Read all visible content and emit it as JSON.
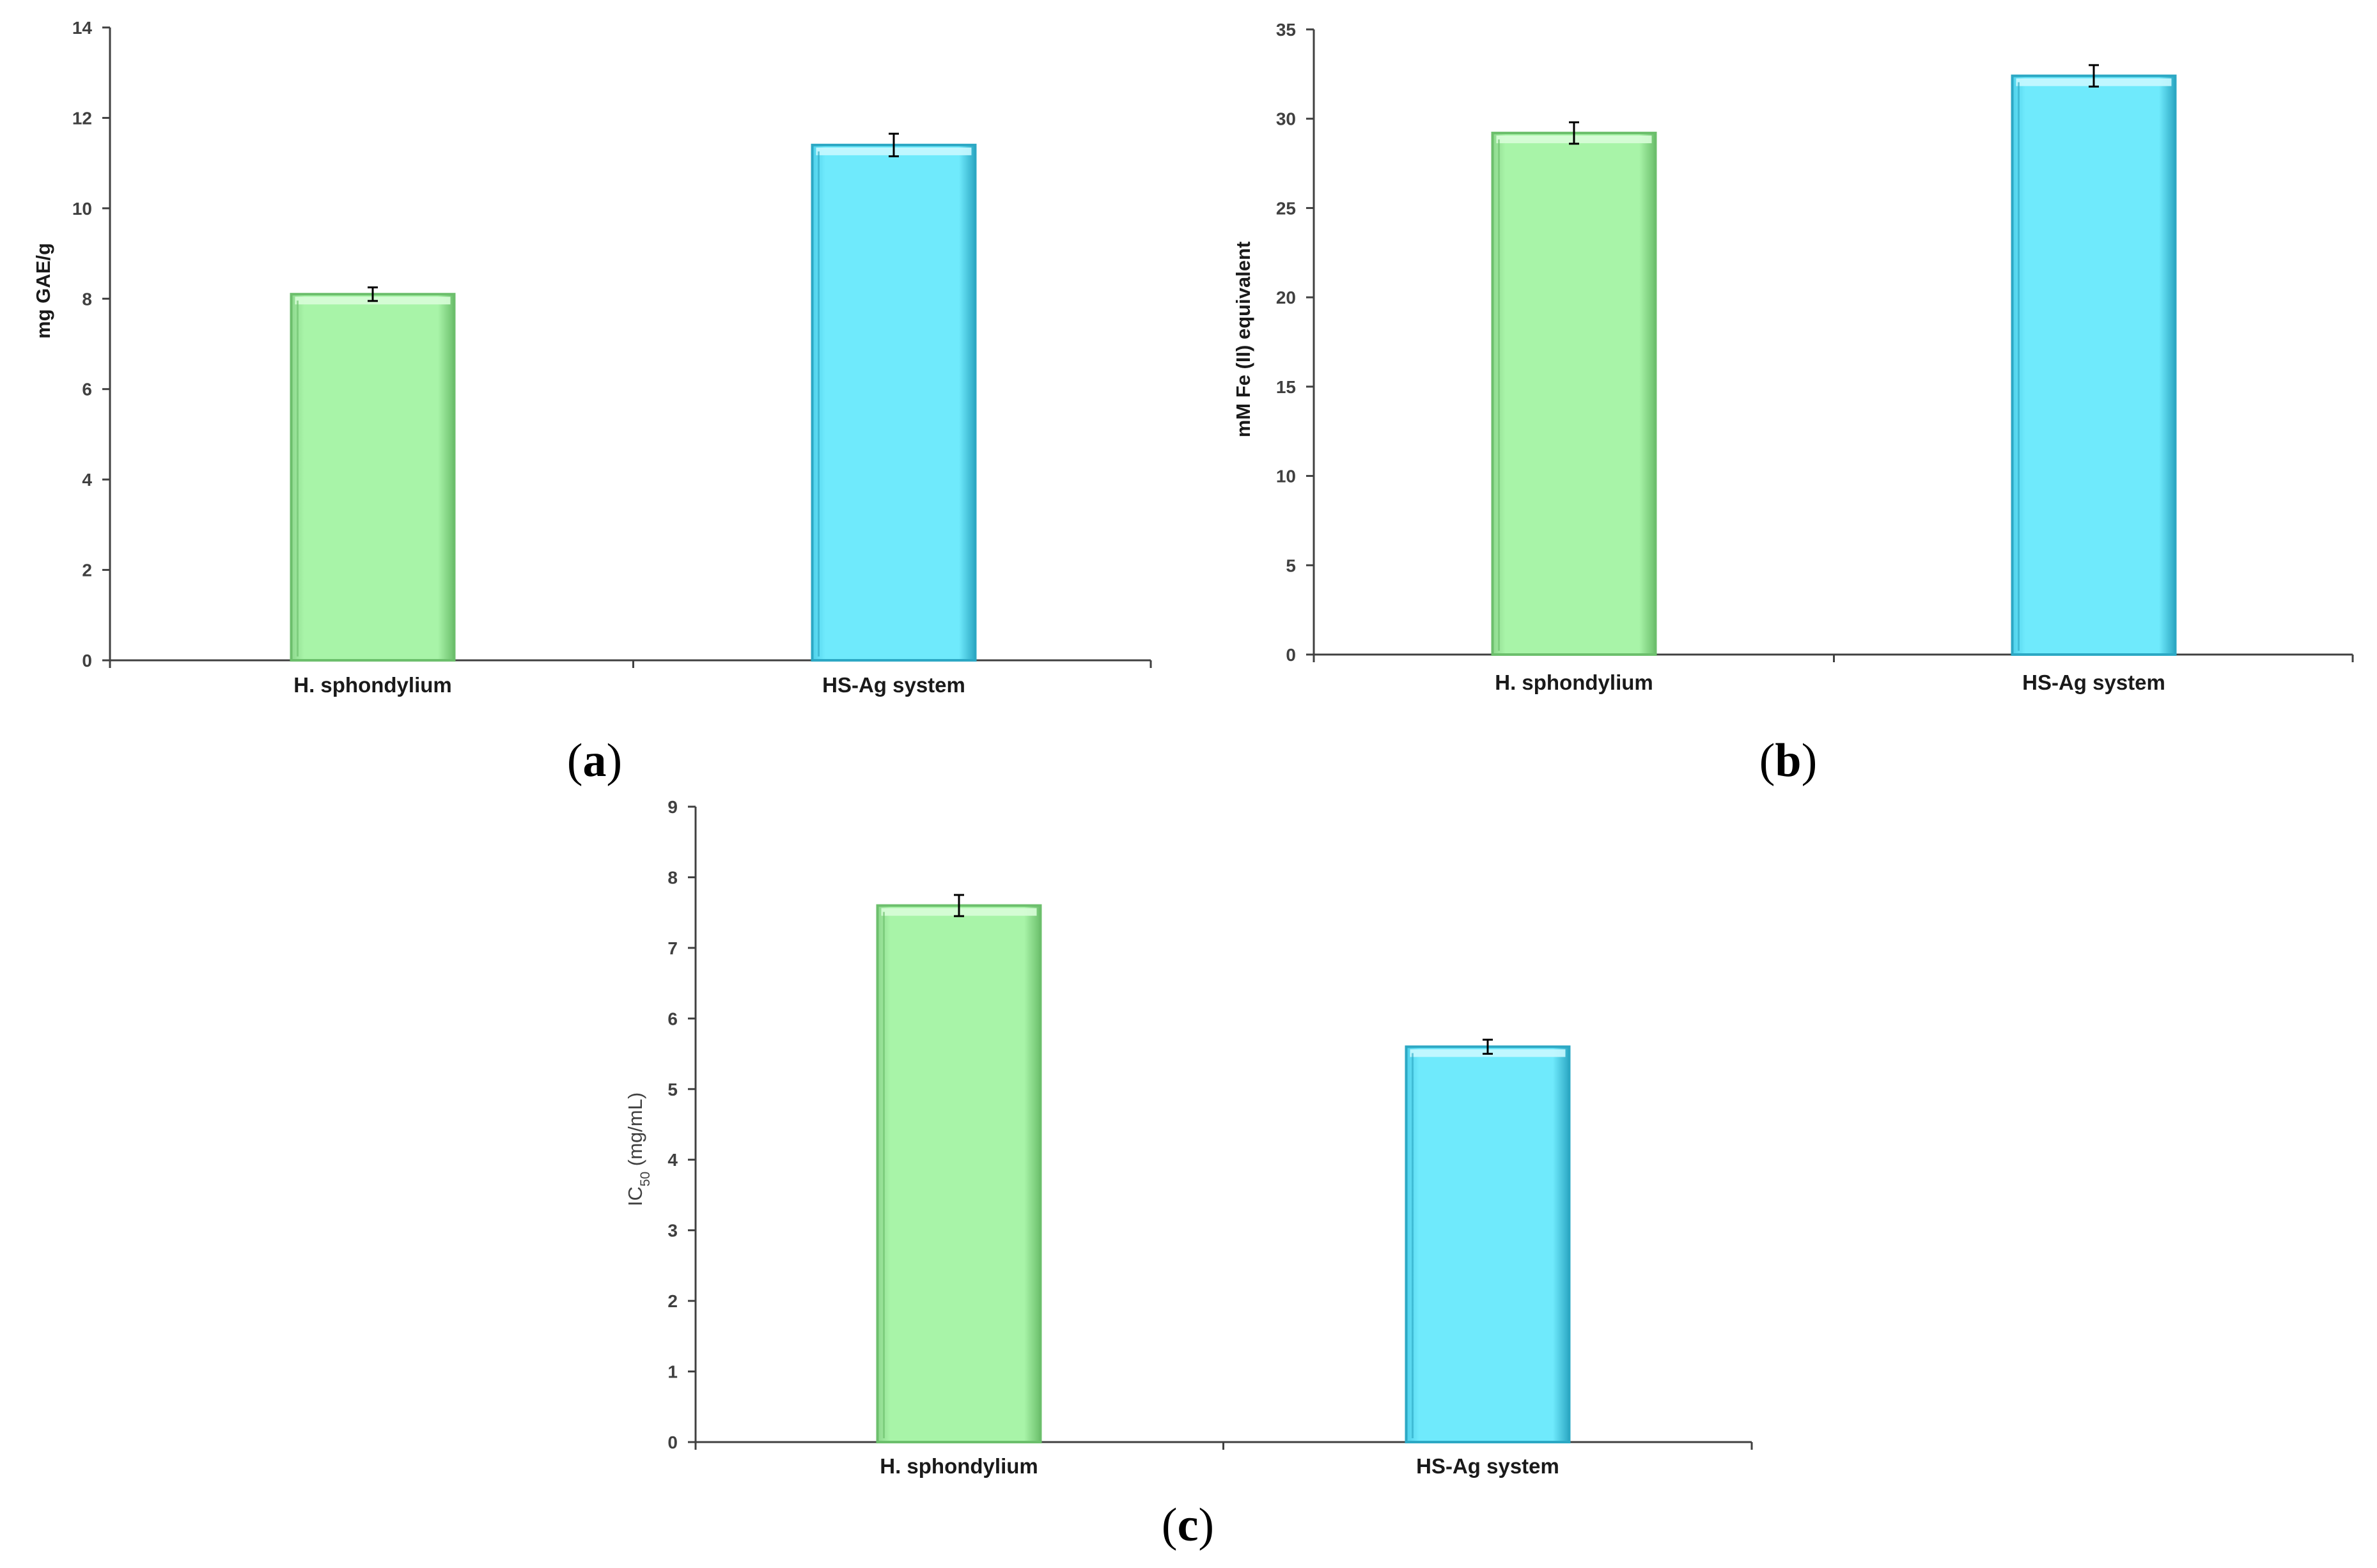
{
  "colors": {
    "green_fill": "#a8f4a8",
    "green_edge": "#6cbf6c",
    "blue_fill": "#6feafc",
    "blue_edge": "#2ca8c4",
    "axis": "#404040"
  },
  "chart_data": [
    {
      "type": "bar",
      "panel_label": {
        "open": "(",
        "letter": "a",
        "close": ")"
      },
      "categories": [
        "H. sphondylium",
        "HS-Ag system"
      ],
      "values": [
        8.1,
        11.4
      ],
      "errors": [
        0.15,
        0.25
      ],
      "ylabel": "mg GAE/g",
      "ylim": [
        0,
        14
      ],
      "yticks": [
        "0",
        "2",
        "4",
        "6",
        "8",
        "10",
        "12",
        "14"
      ]
    },
    {
      "type": "bar",
      "panel_label": {
        "open": "(",
        "letter": "b",
        "close": ")"
      },
      "categories": [
        "H. sphondylium",
        "HS-Ag system"
      ],
      "values": [
        29.2,
        32.4
      ],
      "errors": [
        0.6,
        0.6
      ],
      "ylabel": "mM Fe (II) equivalent",
      "ylim": [
        0,
        35
      ],
      "yticks": [
        "0",
        "5",
        "10",
        "15",
        "20",
        "25",
        "30",
        "35"
      ]
    },
    {
      "type": "bar",
      "panel_label": {
        "open": "(",
        "letter": "c",
        "close": ")"
      },
      "categories": [
        "H. sphondylium",
        "HS-Ag system"
      ],
      "values": [
        7.6,
        5.6
      ],
      "errors": [
        0.15,
        0.1
      ],
      "ylabel_main": "IC",
      "ylabel_sub": "50",
      "ylabel_rest": " (mg/mL)",
      "ylim": [
        0,
        9
      ],
      "yticks": [
        "0",
        "1",
        "2",
        "3",
        "4",
        "5",
        "6",
        "7",
        "8",
        "9"
      ]
    }
  ]
}
